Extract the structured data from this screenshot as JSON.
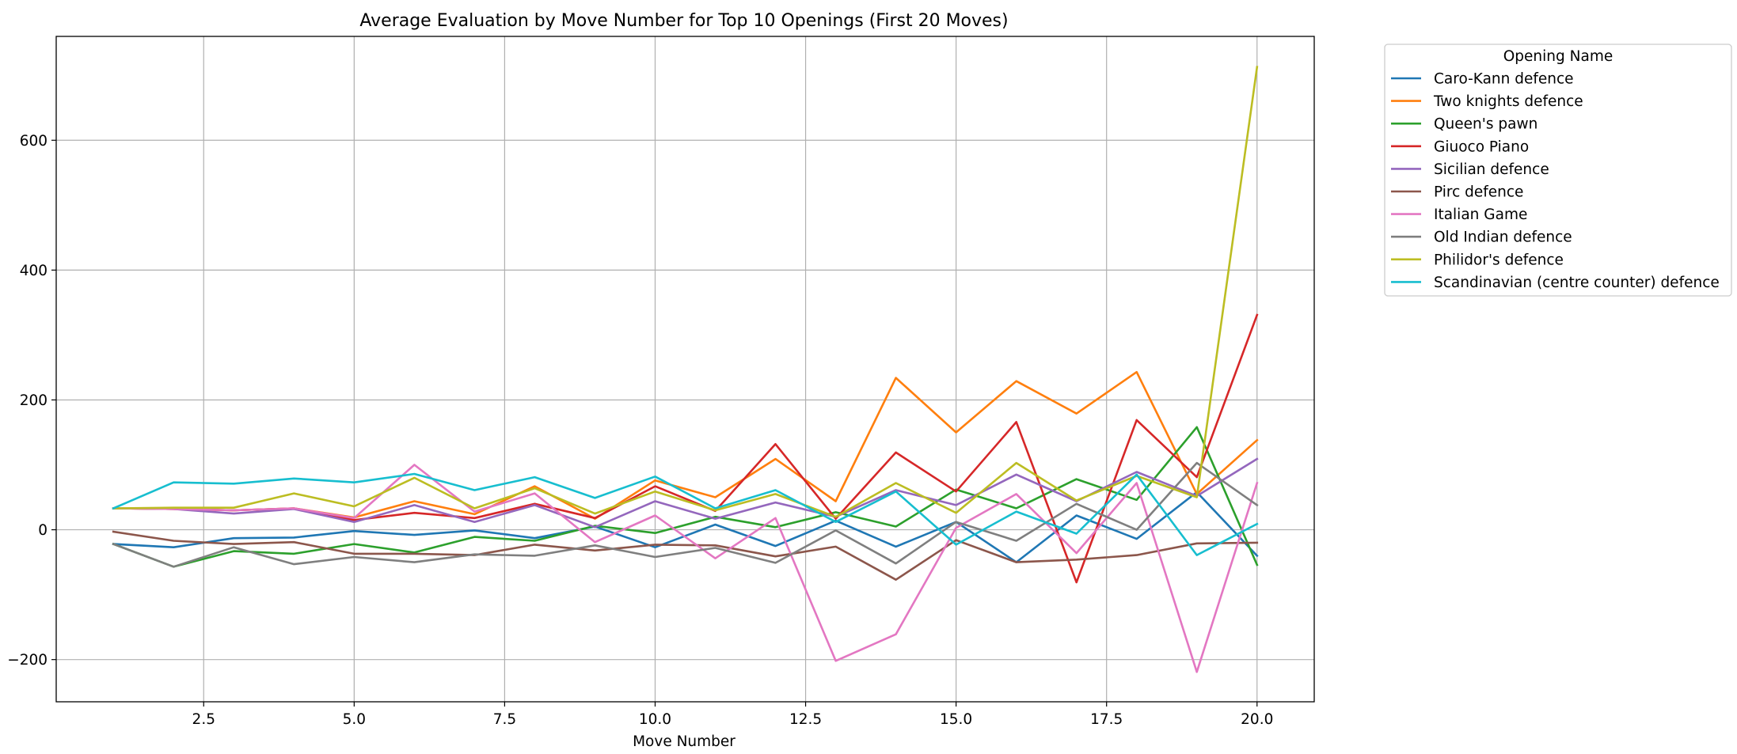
{
  "chart_data": {
    "type": "line",
    "title": "Average Evaluation by Move Number for Top 10 Openings (First 20 Moves)",
    "xlabel": "Move Number",
    "ylabel": "",
    "xlim": [
      0.05,
      20.95
    ],
    "ylim": [
      -265,
      760
    ],
    "xticks": [
      2.5,
      5.0,
      7.5,
      10.0,
      12.5,
      15.0,
      17.5,
      20.0
    ],
    "xtick_labels": [
      "2.5",
      "5.0",
      "7.5",
      "10.0",
      "12.5",
      "15.0",
      "17.5",
      "20.0"
    ],
    "yticks": [
      -200,
      0,
      200,
      400,
      600
    ],
    "ytick_labels": [
      "−200",
      "0",
      "200",
      "400",
      "600"
    ],
    "grid": true,
    "legend_title": "Opening Name",
    "legend_position": "outside right, top",
    "x": [
      1,
      2,
      3,
      4,
      5,
      6,
      7,
      8,
      9,
      10,
      11,
      12,
      13,
      14,
      15,
      16,
      17,
      18,
      19,
      20
    ],
    "series": [
      {
        "name": "Caro-Kann defence",
        "color": "#1f77b4",
        "values": [
          -22,
          -27,
          -13,
          -12,
          -2,
          -8,
          -1,
          -13,
          5,
          -27,
          8,
          -25,
          14,
          -26,
          12,
          -50,
          22,
          -14,
          58,
          -40
        ]
      },
      {
        "name": "Two knights defence",
        "color": "#ff7f0e",
        "values": [
          33,
          32,
          30,
          33,
          19,
          44,
          24,
          67,
          17,
          76,
          50,
          109,
          44,
          234,
          150,
          229,
          179,
          243,
          55,
          138
        ]
      },
      {
        "name": "Queen's pawn",
        "color": "#2ca02c",
        "values": [
          -22,
          -57,
          -33,
          -37,
          -22,
          -35,
          -11,
          -17,
          6,
          -5,
          20,
          4,
          27,
          5,
          62,
          33,
          78,
          46,
          158,
          -54
        ]
      },
      {
        "name": "Giuoco Piano",
        "color": "#d62728",
        "values": [
          33,
          32,
          30,
          33,
          15,
          26,
          18,
          40,
          18,
          67,
          29,
          132,
          17,
          119,
          59,
          166,
          -81,
          169,
          81,
          331
        ]
      },
      {
        "name": "Sicilian defence",
        "color": "#9467bd",
        "values": [
          33,
          32,
          25,
          32,
          12,
          38,
          12,
          38,
          4,
          44,
          17,
          42,
          20,
          61,
          38,
          85,
          44,
          89,
          52,
          109
        ]
      },
      {
        "name": "Pirc defence",
        "color": "#8c564b",
        "values": [
          -3,
          -17,
          -22,
          -19,
          -37,
          -37,
          -39,
          -23,
          -32,
          -23,
          -24,
          -41,
          -26,
          -77,
          -16,
          -50,
          -46,
          -39,
          -21,
          -20
        ]
      },
      {
        "name": "Italian Game",
        "color": "#e377c2",
        "values": [
          33,
          32,
          30,
          33,
          18,
          100,
          28,
          56,
          -19,
          22,
          -44,
          18,
          -202,
          -161,
          3,
          55,
          -36,
          72,
          -219,
          72
        ]
      },
      {
        "name": "Old Indian defence",
        "color": "#7f7f7f",
        "values": [
          -22,
          -57,
          -27,
          -53,
          -42,
          -50,
          -38,
          -40,
          -24,
          -42,
          -28,
          -51,
          -1,
          -52,
          12,
          -17,
          40,
          0,
          103,
          38
        ]
      },
      {
        "name": "Philidor's defence",
        "color": "#bcbd22",
        "values": [
          33,
          34,
          34,
          56,
          36,
          80,
          33,
          64,
          25,
          59,
          30,
          55,
          20,
          72,
          26,
          103,
          45,
          83,
          50,
          713
        ]
      },
      {
        "name": "Scandinavian (centre counter) defence",
        "color": "#17becf",
        "values": [
          33,
          73,
          71,
          79,
          73,
          86,
          61,
          81,
          49,
          82,
          33,
          61,
          12,
          59,
          -23,
          28,
          -6,
          85,
          -39,
          9
        ]
      }
    ]
  }
}
